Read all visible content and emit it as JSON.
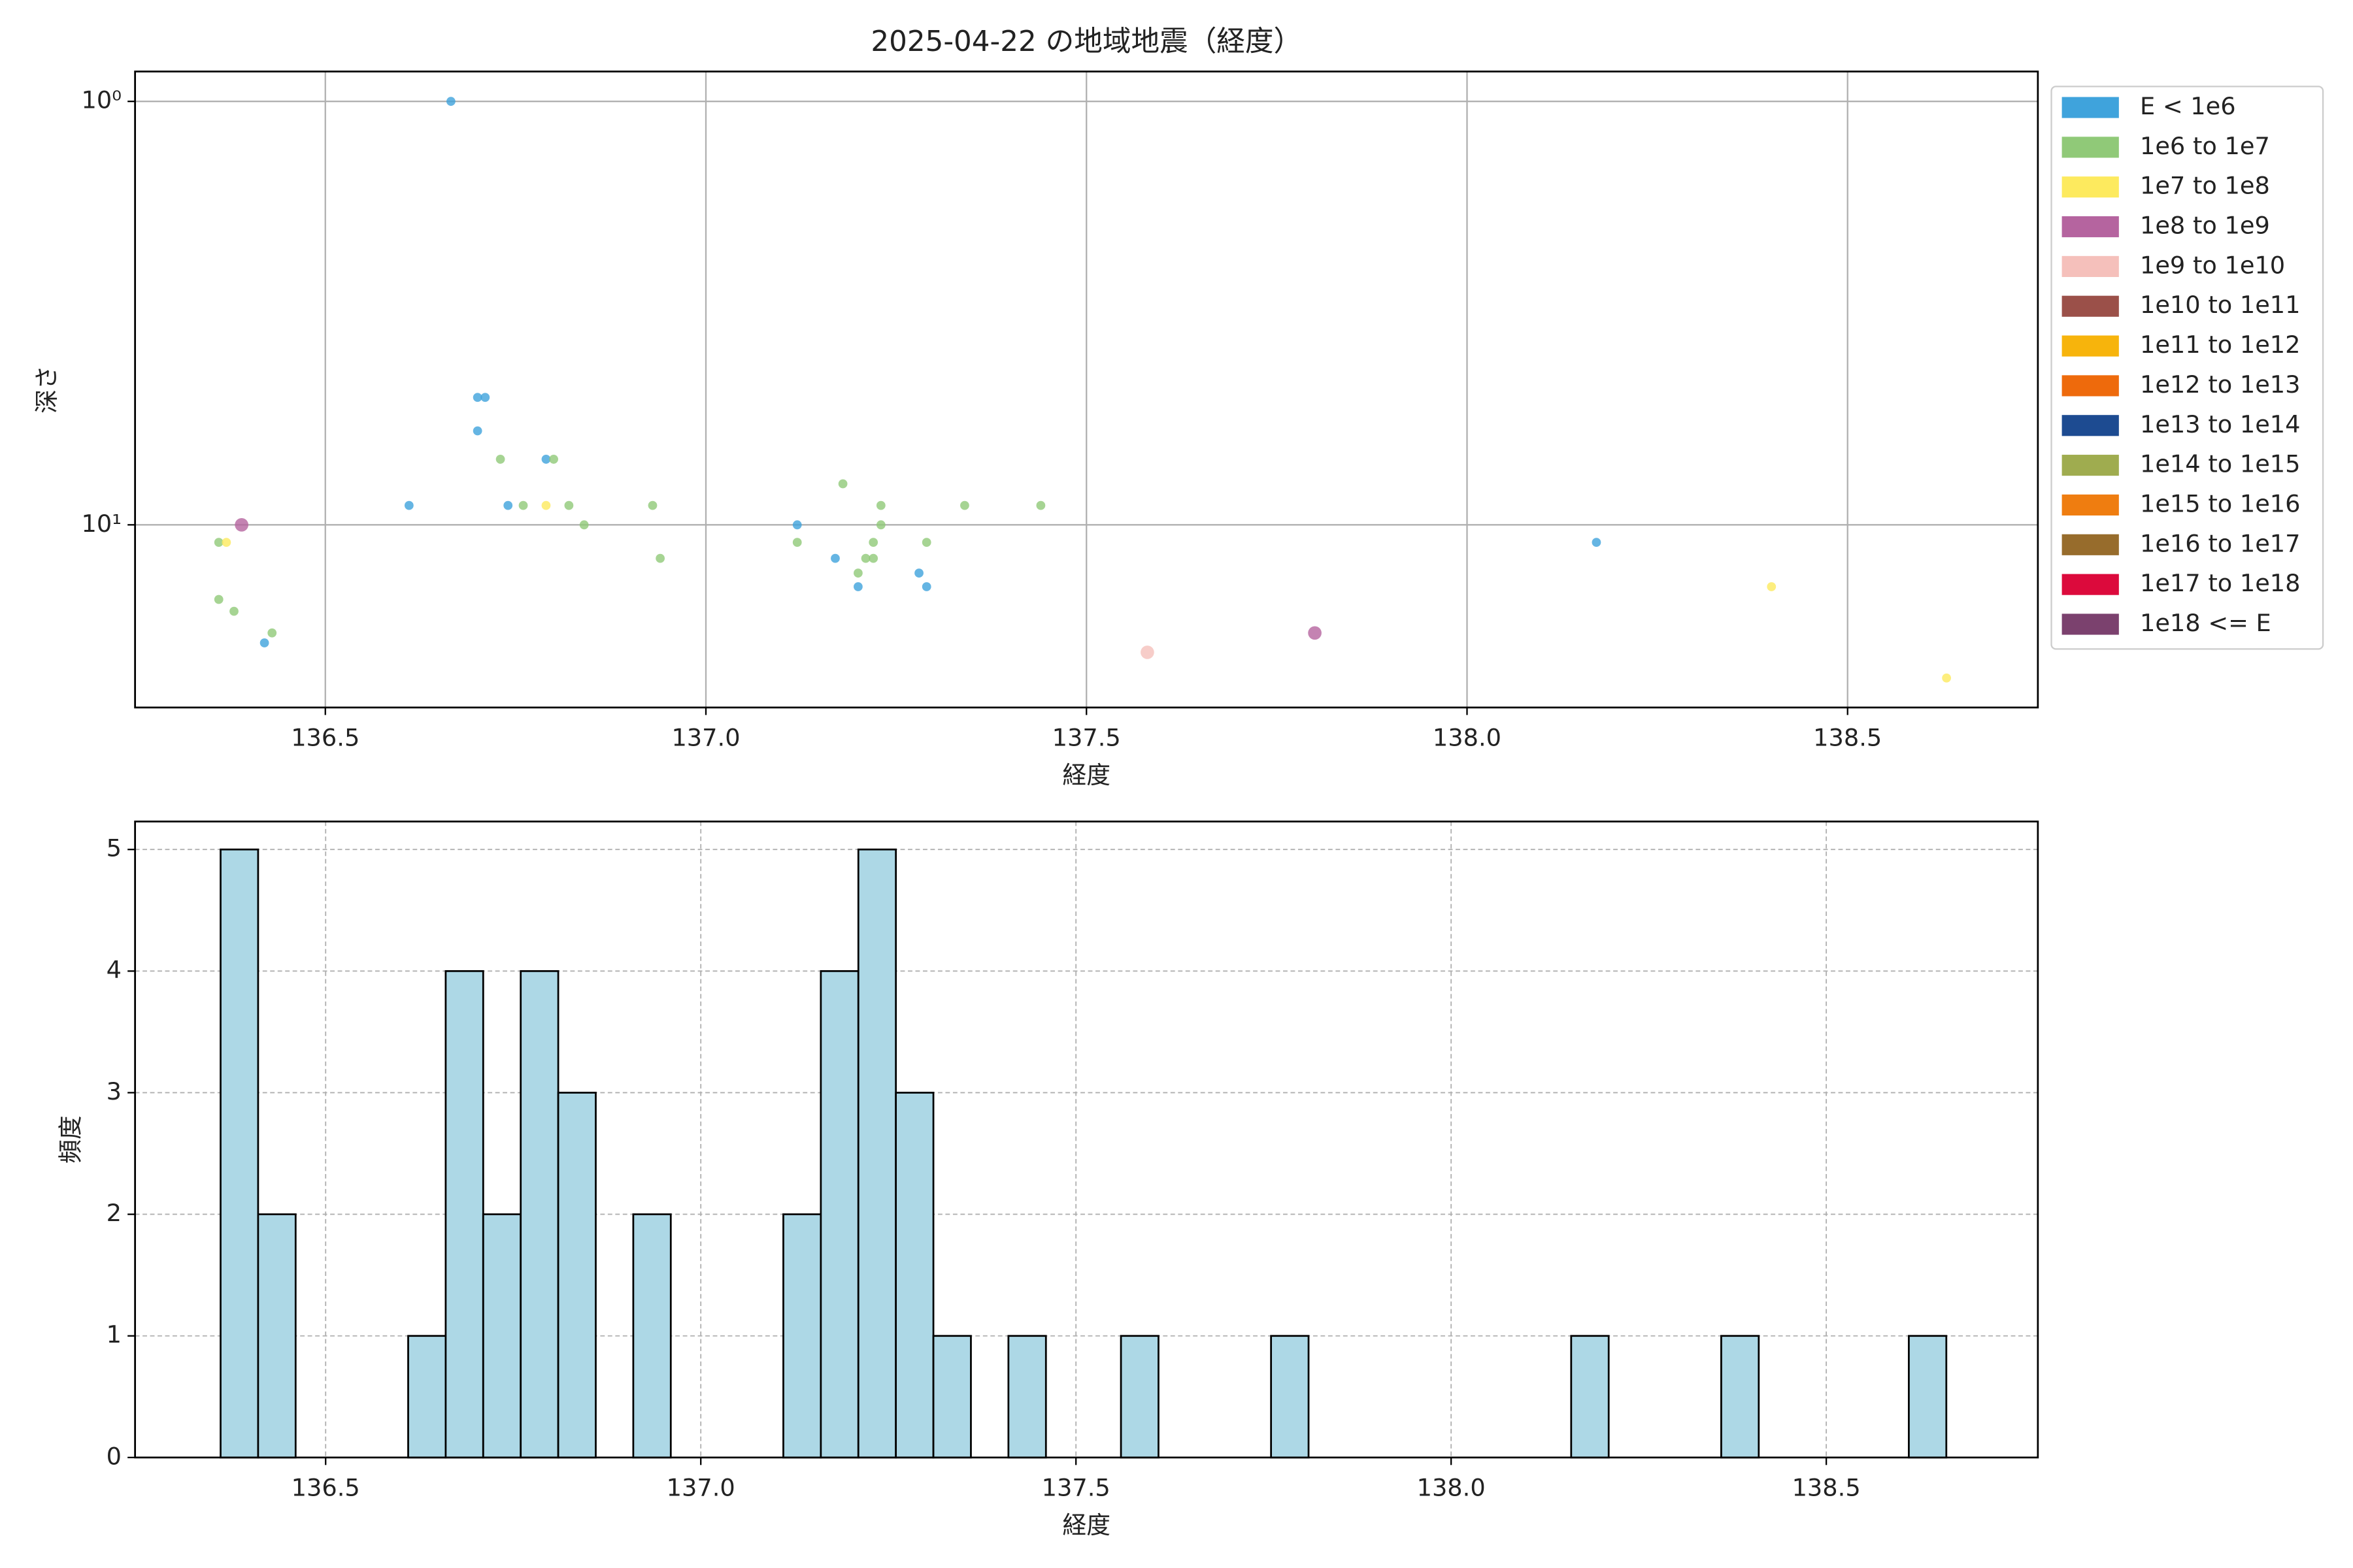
{
  "chart_data": [
    {
      "type": "scatter",
      "title": "2025-04-22 の地域地震（経度）",
      "xlabel": "経度",
      "ylabel": "深さ",
      "xlim": [
        136.25,
        138.75
      ],
      "xticks": [
        136.5,
        {
          "value": 137,
          "label": "137.0"
        },
        137.5,
        {
          "value": 138,
          "label": "138.0"
        },
        138.5
      ],
      "yscale": "log",
      "ylim": [
        27,
        0.85
      ],
      "yticks": [
        {
          "value": 1,
          "label": "10⁰"
        },
        {
          "value": 10,
          "label": "10¹"
        }
      ],
      "grid": true,
      "legend": "outside-upper-right",
      "series": [
        {
          "name": "E < 1e6",
          "color": "#3fa3dc",
          "x": [
            136.665,
            136.7,
            136.71,
            136.7,
            136.61,
            136.74,
            136.79,
            137.12,
            137.17,
            137.2,
            137.28,
            137.29,
            136.42,
            138.17
          ],
          "values": [
            1,
            5,
            5,
            6,
            9,
            9,
            7,
            10,
            12,
            14,
            13,
            14,
            19,
            11
          ]
        },
        {
          "name": "1e6 to 1e7",
          "color": "#90c978",
          "x": [
            136.73,
            136.8,
            136.76,
            136.82,
            136.84,
            136.93,
            136.94,
            137.12,
            137.18,
            137.23,
            137.22,
            137.23,
            137.21,
            137.22,
            137.2,
            137.29,
            137.34,
            137.44,
            136.36,
            136.38,
            136.43,
            136.36
          ],
          "values": [
            7,
            7,
            9,
            9,
            10,
            9,
            12,
            11,
            8,
            9,
            11,
            10,
            12,
            12,
            13,
            11,
            9,
            9,
            15,
            16,
            18,
            11
          ]
        },
        {
          "name": "1e7 to 1e8",
          "color": "#fdea5e",
          "x": [
            136.37,
            136.79,
            138.4,
            138.63
          ],
          "values": [
            11,
            9,
            14,
            23
          ]
        },
        {
          "name": "1e8 to 1e9",
          "color": "#b5649f",
          "x": [
            136.39,
            137.8
          ],
          "values": [
            10,
            18
          ]
        },
        {
          "name": "1e9 to 1e10",
          "color": "#f5c0bb",
          "x": [
            137.58
          ],
          "values": [
            20
          ]
        },
        {
          "name": "1e10 to 1e11",
          "color": "#9b5049",
          "x": [],
          "values": []
        },
        {
          "name": "1e11 to 1e12",
          "color": "#f7b40c",
          "x": [],
          "values": []
        },
        {
          "name": "1e12 to 1e13",
          "color": "#ee6a0c",
          "x": [],
          "values": []
        },
        {
          "name": "1e13 to 1e14",
          "color": "#1d4b91",
          "x": [],
          "values": []
        },
        {
          "name": "1e14 to 1e15",
          "color": "#9fac4f",
          "x": [],
          "values": []
        },
        {
          "name": "1e15 to 1e16",
          "color": "#ef7d10",
          "x": [],
          "values": []
        },
        {
          "name": "1e16 to 1e17",
          "color": "#976c2c",
          "x": [],
          "values": []
        },
        {
          "name": "1e17 to 1e18",
          "color": "#dc0a3c",
          "x": [],
          "values": []
        },
        {
          "name": "1e18 <= E",
          "color": "#7b416e",
          "x": [],
          "values": []
        }
      ]
    },
    {
      "type": "histogram",
      "xlabel": "経度",
      "ylabel": "頻度",
      "color": "#add8e6",
      "edgecolor": "#000000",
      "xlim": [
        136.246,
        138.782
      ],
      "xticks": [
        136.5,
        {
          "value": 137,
          "label": "137.0"
        },
        137.5,
        {
          "value": 138,
          "label": "138.0"
        },
        138.5
      ],
      "ylim": [
        0,
        5.23
      ],
      "yticks": [
        0,
        1,
        2,
        3,
        4,
        5
      ],
      "grid": "dashed",
      "bins": [
        136.36,
        136.41,
        136.46,
        136.51,
        136.56,
        136.61,
        136.66,
        136.71,
        136.76,
        136.81,
        136.86,
        136.91,
        136.96,
        137.01,
        137.06,
        137.11,
        137.16,
        137.21,
        137.26,
        137.31,
        137.36,
        137.41,
        137.46,
        137.51,
        137.56,
        137.61,
        137.66,
        137.71,
        137.76,
        137.81,
        137.86,
        137.91,
        137.96,
        138.01,
        138.06,
        138.11,
        138.16,
        138.21,
        138.26,
        138.31,
        138.36,
        138.41,
        138.46,
        138.51,
        138.56,
        138.61,
        138.66
      ],
      "counts": [
        5,
        2,
        0,
        0,
        0,
        1,
        4,
        2,
        4,
        3,
        0,
        2,
        0,
        0,
        0,
        2,
        4,
        5,
        3,
        1,
        0,
        1,
        0,
        0,
        1,
        0,
        0,
        0,
        1,
        0,
        0,
        0,
        0,
        0,
        0,
        0,
        1,
        0,
        0,
        0,
        1,
        0,
        0,
        0,
        0,
        1
      ]
    }
  ]
}
